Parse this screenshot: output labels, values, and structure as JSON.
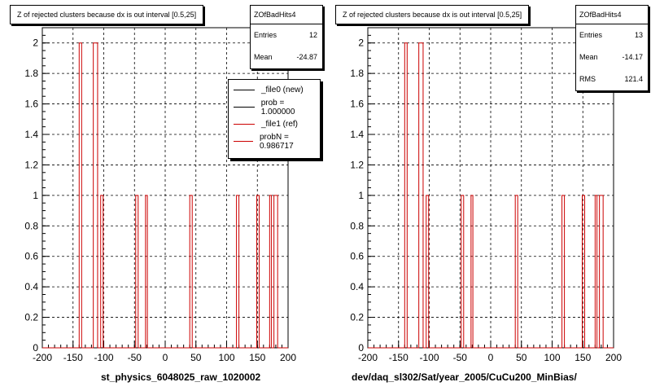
{
  "chart_data": [
    {
      "type": "bar",
      "title": "Z of rejected clusters  because dx is out interval [0.5,25]",
      "xlabel": "st_physics_6048025_raw_1020002",
      "ylabel": "",
      "xlim": [
        -200,
        200
      ],
      "ylim": [
        0,
        2.1
      ],
      "xticks": [
        "-200",
        "-150",
        "-100",
        "-50",
        "0",
        "50",
        "100",
        "150",
        "200"
      ],
      "yticks": [
        "0",
        "0.2",
        "0.4",
        "0.6",
        "0.8",
        "1",
        "1.2",
        "1.4",
        "1.6",
        "1.8",
        "2"
      ],
      "grid": true,
      "stats": {
        "name": "ZOfBadHits4",
        "entries_label": "Entries",
        "entries": "12",
        "mean_label": "Mean",
        "mean": "-24.87"
      },
      "legend": [
        {
          "label": "_file0 (new)",
          "color": "#000000"
        },
        {
          "label": "prob = 1.000000",
          "color": "#000000"
        },
        {
          "label": "_file1 (ref)",
          "color": "#cc0000"
        },
        {
          "label": "probN = 0.986717",
          "color": "#cc0000"
        }
      ],
      "series": [
        {
          "name": "_file0 (new)",
          "color": "#000000",
          "bars": []
        },
        {
          "name": "_file1 (ref)",
          "color": "#cc0000",
          "bars": [
            {
              "x0": -140,
              "x1": -136,
              "y": 2
            },
            {
              "x0": -117,
              "x1": -110,
              "y": 2
            },
            {
              "x0": -105,
              "x1": -101,
              "y": 1
            },
            {
              "x0": -48,
              "x1": -44,
              "y": 1
            },
            {
              "x0": -32,
              "x1": -29,
              "y": 1
            },
            {
              "x0": 40,
              "x1": 44,
              "y": 1
            },
            {
              "x0": 116,
              "x1": 120,
              "y": 1
            },
            {
              "x0": 149,
              "x1": 153,
              "y": 1
            },
            {
              "x0": 170,
              "x1": 173,
              "y": 1
            },
            {
              "x0": 177,
              "x1": 183,
              "y": 1
            }
          ]
        }
      ]
    },
    {
      "type": "bar",
      "title": "Z of rejected clusters  because dx is out interval [0.5,25]",
      "xlabel": "dev/daq_sl302/Sat/year_2005/CuCu200_MinBias/",
      "ylabel": "",
      "xlim": [
        -200,
        200
      ],
      "ylim": [
        0,
        2.1
      ],
      "xticks": [
        "-200",
        "-150",
        "-100",
        "-50",
        "0",
        "50",
        "100",
        "150",
        "200"
      ],
      "yticks": [
        "0",
        "0.2",
        "0.4",
        "0.6",
        "0.8",
        "1",
        "1.2",
        "1.4",
        "1.6",
        "1.8",
        "2"
      ],
      "grid": true,
      "stats": {
        "name": "ZOfBadHits4",
        "entries_label": "Entries",
        "entries": "13",
        "mean_label": "Mean",
        "mean": "-14.17",
        "rms_label": "RMS",
        "rms": "121.4"
      },
      "series": [
        {
          "name": "_file1 (ref)",
          "color": "#cc0000",
          "bars": [
            {
              "x0": -140,
              "x1": -136,
              "y": 2
            },
            {
              "x0": -117,
              "x1": -110,
              "y": 2
            },
            {
              "x0": -105,
              "x1": -101,
              "y": 1
            },
            {
              "x0": -48,
              "x1": -44,
              "y": 1
            },
            {
              "x0": -32,
              "x1": -29,
              "y": 1
            },
            {
              "x0": 40,
              "x1": 44,
              "y": 1
            },
            {
              "x0": 116,
              "x1": 120,
              "y": 1
            },
            {
              "x0": 149,
              "x1": 153,
              "y": 1
            },
            {
              "x0": 170,
              "x1": 173,
              "y": 1
            },
            {
              "x0": 177,
              "x1": 183,
              "y": 1
            }
          ]
        }
      ]
    }
  ]
}
